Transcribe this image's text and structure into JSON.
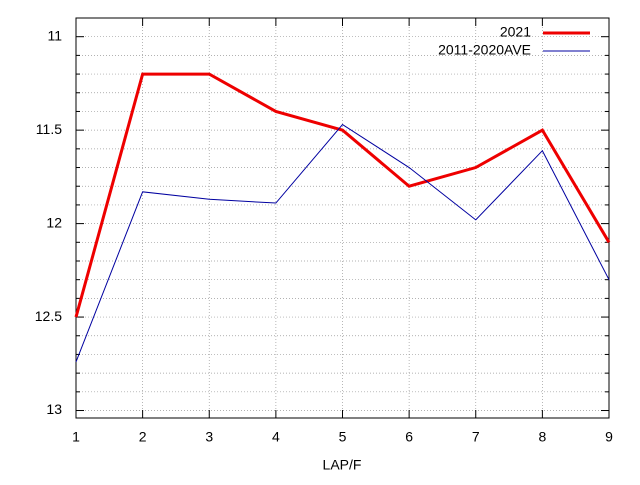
{
  "chart_data": {
    "type": "line",
    "xlabel": "LAP/F",
    "x": [
      1,
      2,
      3,
      4,
      5,
      6,
      7,
      8,
      9
    ],
    "series": [
      {
        "name": "2021",
        "color": "#ee0000",
        "values": [
          12.5,
          11.2,
          11.2,
          11.4,
          11.5,
          11.8,
          11.7,
          11.5,
          12.1
        ]
      },
      {
        "name": "2011-2020AVE",
        "color": "#0000a0",
        "values": [
          12.74,
          11.83,
          11.87,
          11.89,
          11.47,
          11.7,
          11.98,
          11.61,
          12.3
        ]
      }
    ],
    "xlim": [
      1,
      9
    ],
    "xticks": [
      1,
      2,
      3,
      4,
      5,
      6,
      7,
      8,
      9
    ],
    "ylim": [
      13.04,
      10.9
    ],
    "yticks": [
      11,
      11.5,
      12,
      12.5,
      13
    ],
    "yminorticks": [
      11.1,
      11.2,
      11.3,
      11.4,
      11.6,
      11.7,
      11.8,
      11.9,
      12.1,
      12.2,
      12.3,
      12.4,
      12.6,
      12.7,
      12.8,
      12.9
    ],
    "grid": true,
    "legend": "top-right"
  }
}
